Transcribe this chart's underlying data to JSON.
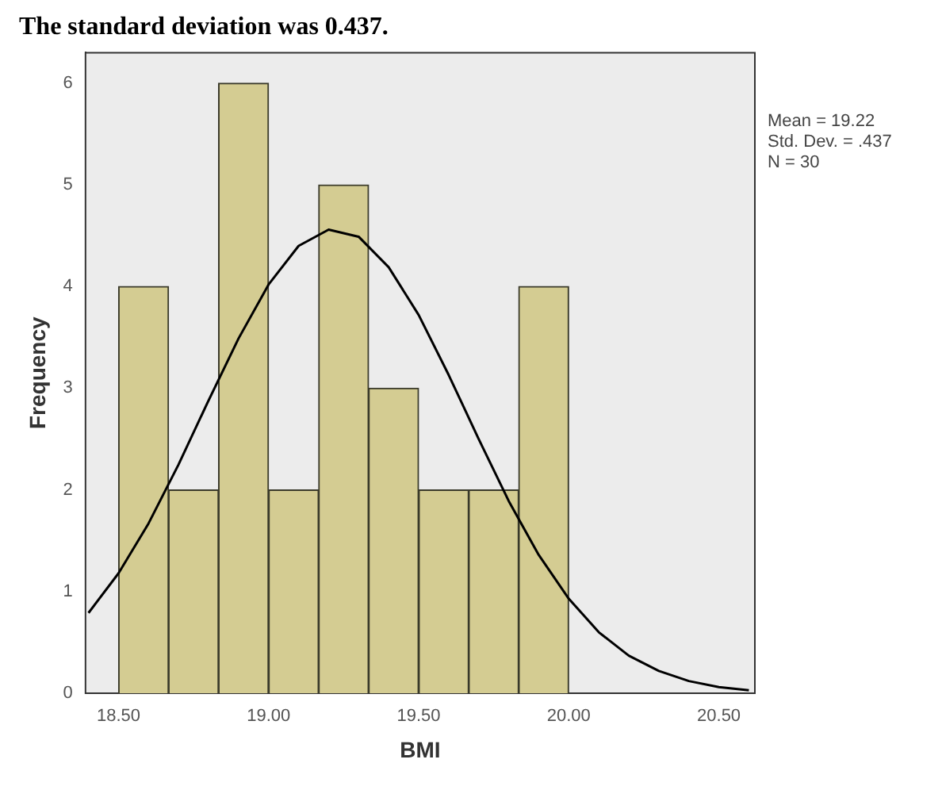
{
  "chart_data": {
    "type": "histogram",
    "title": "The standard deviation was 0.437.",
    "xlabel": "BMI",
    "ylabel": "Frequency",
    "bins": [
      18.5,
      18.667,
      18.833,
      19,
      19.167,
      19.333,
      19.5,
      19.667,
      19.833,
      20
    ],
    "values": [
      4,
      2,
      6,
      2,
      5,
      3,
      2,
      2,
      4
    ],
    "color": "#d4cc92",
    "series": [
      {
        "type": "line",
        "color": "#000000",
        "x": [
          18.4,
          18.5,
          18.6,
          18.7,
          18.8,
          18.9,
          19.0,
          19.1,
          19.2,
          19.3,
          19.4,
          19.5,
          19.6,
          19.7,
          19.8,
          19.9,
          20.0,
          20.1,
          20.2,
          20.3,
          20.4,
          20.5,
          20.6
        ],
        "values": [
          0.79,
          1.18,
          1.67,
          2.25,
          2.88,
          3.49,
          4.02,
          4.4,
          4.56,
          4.49,
          4.19,
          3.72,
          3.13,
          2.5,
          1.89,
          1.36,
          0.93,
          0.6,
          0.37,
          0.22,
          0.12,
          0.06,
          0.03
        ]
      }
    ],
    "xlim": [
      18.39,
      20.62
    ],
    "xticks": [
      {
        "value": 18.5,
        "label": "18.50"
      },
      {
        "value": 19,
        "label": "19.00"
      },
      {
        "value": 19.5,
        "label": "19.50"
      },
      {
        "value": 20,
        "label": "20.00"
      },
      {
        "value": 20.5,
        "label": "20.50"
      }
    ],
    "ylim": [
      0,
      6.3
    ],
    "yticks": [
      0,
      1,
      2,
      3,
      4,
      5,
      6
    ],
    "marker": "none",
    "annotations": [
      "Mean = 19.22",
      "Std. Dev. = .437",
      "N = 30"
    ]
  }
}
